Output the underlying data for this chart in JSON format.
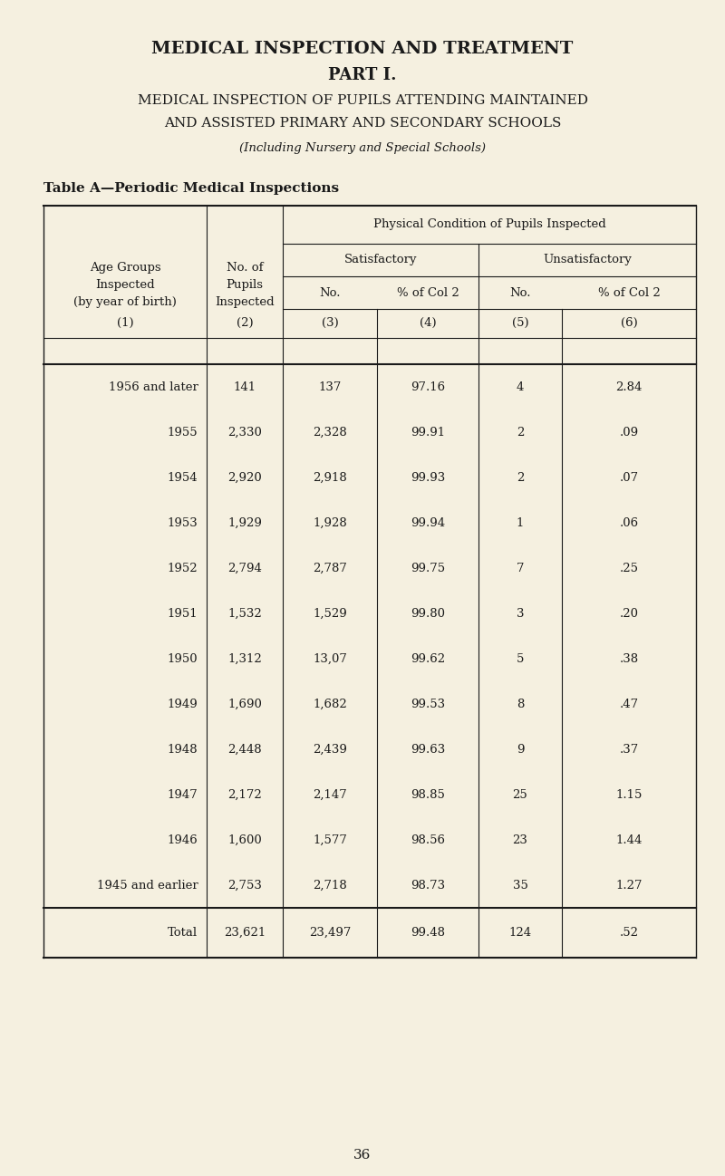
{
  "bg_color": "#f5f0e0",
  "title1": "MEDICAL INSPECTION AND TREATMENT",
  "title2": "PART I.",
  "title3": "MEDICAL INSPECTION OF PUPILS ATTENDING MAINTAINED",
  "title4": "AND ASSISTED PRIMARY AND SECONDARY SCHOOLS",
  "title5": "(Including Nursery and Special Schools)",
  "table_title": "Table A—Periodic Medical Inspections",
  "col_header_1": "Age Groups\nInspected\n(by year of birth)",
  "col_header_2": "No. of\nPupils\nInspected",
  "col_header_3": "Physical Condition of Pupils Inspected",
  "col_header_3a": "Satisfactory",
  "col_header_3b": "Unsatisfactory",
  "col_sub1": "No.",
  "col_sub2": "% of Col 2",
  "col_sub3": "No.",
  "col_sub4": "% of Col 2",
  "col_num1": "(1)",
  "col_num2": "(2)",
  "col_num3": "(3)",
  "col_num4": "(4)",
  "col_num5": "(5)",
  "col_num6": "(6)",
  "rows": [
    [
      "1956 and later",
      "141",
      "137",
      "97.16",
      "4",
      "2.84"
    ],
    [
      "1955",
      "2,330",
      "2,328",
      "99.91",
      "2",
      ".09"
    ],
    [
      "1954",
      "2,920",
      "2,918",
      "99.93",
      "2",
      ".07"
    ],
    [
      "1953",
      "1,929",
      "1,928",
      "99.94",
      "1",
      ".06"
    ],
    [
      "1952",
      "2,794",
      "2,787",
      "99.75",
      "7",
      ".25"
    ],
    [
      "1951",
      "1,532",
      "1,529",
      "99.80",
      "3",
      ".20"
    ],
    [
      "1950",
      "1,312",
      "13,07",
      "99.62",
      "5",
      ".38"
    ],
    [
      "1949",
      "1,690",
      "1,682",
      "99.53",
      "8",
      ".47"
    ],
    [
      "1948",
      "2,448",
      "2,439",
      "99.63",
      "9",
      ".37"
    ],
    [
      "1947",
      "2,172",
      "2,147",
      "98.85",
      "25",
      "1.15"
    ],
    [
      "1946",
      "1,600",
      "1,577",
      "98.56",
      "23",
      "1.44"
    ],
    [
      "1945 and earlier",
      "2,753",
      "2,718",
      "98.73",
      "35",
      "1.27"
    ]
  ],
  "total_row": [
    "Total",
    "23,621",
    "23,497",
    "99.48",
    "124",
    ".52"
  ],
  "page_number": "36",
  "text_color": "#1a1a1a",
  "line_color": "#1a1a1a"
}
